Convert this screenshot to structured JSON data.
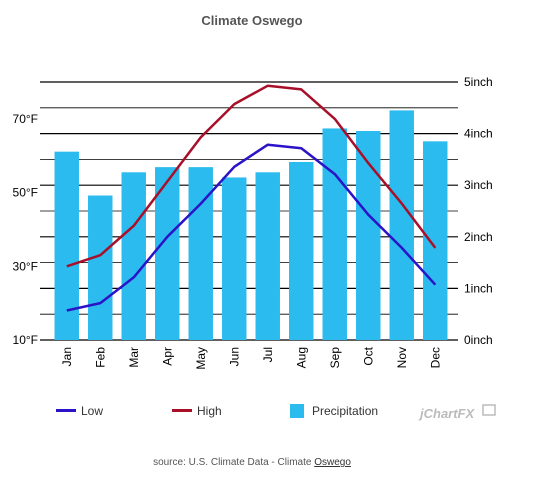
{
  "colors": {
    "low": "#2a13c8",
    "high": "#a8102a",
    "precipitation": "#2bbbee",
    "grid": "#000000",
    "title": "#555555",
    "brand": "#bbbbbb"
  },
  "source": {
    "prefix": "source: U.S. Climate Data - Climate ",
    "link": "Oswego"
  },
  "brand": "jChartFX",
  "chart_data": {
    "type": "bar+line",
    "title": "Climate Oswego",
    "categories": [
      "Jan",
      "Feb",
      "Mar",
      "Apr",
      "May",
      "Jun",
      "Jul",
      "Aug",
      "Sep",
      "Oct",
      "Nov",
      "Dec"
    ],
    "left_axis": {
      "range": [
        10,
        80
      ],
      "ticks": [
        10,
        30,
        50,
        70
      ],
      "tick_labels": [
        "10°F",
        "30°F",
        "50°F",
        "70°F"
      ]
    },
    "right_axis": {
      "range": [
        0,
        5
      ],
      "ticks": [
        0,
        1,
        2,
        3,
        4,
        5
      ],
      "tick_labels": [
        "0inch",
        "1inch",
        "2inch",
        "3inch",
        "4inch",
        "5inch"
      ]
    },
    "grid": true,
    "legend_position": "bottom",
    "series": [
      {
        "name": "Low",
        "type": "line",
        "axis": "left",
        "color_key": "low",
        "values": [
          18,
          20,
          27,
          38,
          47,
          57,
          63,
          62,
          55,
          44,
          35,
          25
        ]
      },
      {
        "name": "High",
        "type": "line",
        "axis": "left",
        "color_key": "high",
        "values": [
          30,
          33,
          41,
          53,
          65,
          74,
          79,
          78,
          70,
          58,
          47,
          35
        ]
      },
      {
        "name": "Precipitation",
        "type": "bar",
        "axis": "right",
        "color_key": "precipitation",
        "values": [
          3.65,
          2.8,
          3.25,
          3.35,
          3.35,
          3.15,
          3.25,
          3.45,
          4.1,
          4.05,
          4.45,
          3.85
        ]
      }
    ]
  }
}
